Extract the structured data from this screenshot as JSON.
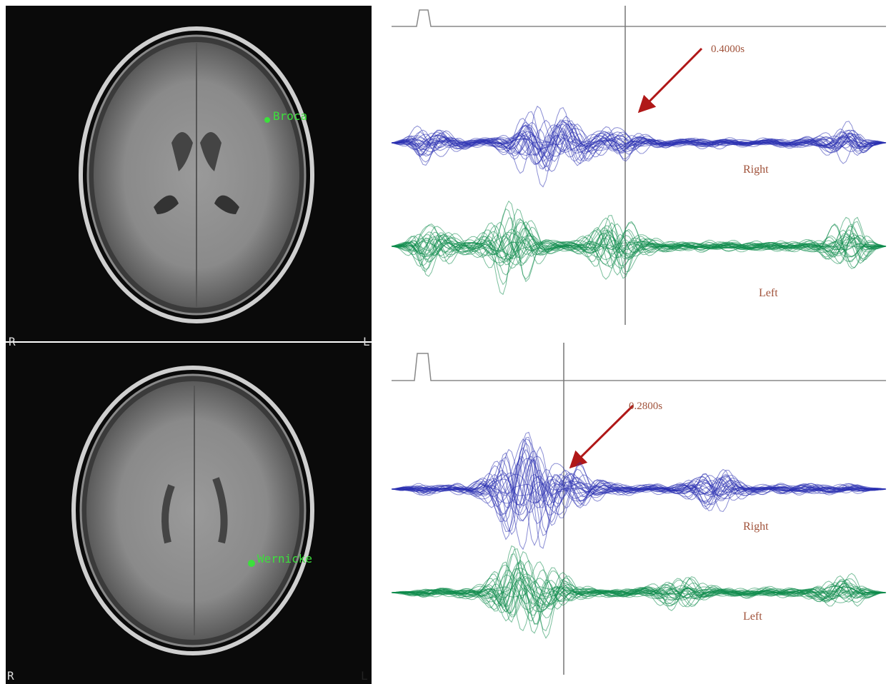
{
  "panels": [
    {
      "mri": {
        "label": "Broca",
        "orient_left": "R",
        "orient_right": "L"
      },
      "meg": {
        "time_label": "0.4000s",
        "upper_trace": "Right",
        "lower_trace": "Left"
      }
    },
    {
      "mri": {
        "label": "Wernicke",
        "orient_left": "R",
        "orient_right": "L"
      },
      "meg": {
        "time_label": "0.2800s",
        "upper_trace": "Right",
        "lower_trace": "Left"
      }
    }
  ]
}
